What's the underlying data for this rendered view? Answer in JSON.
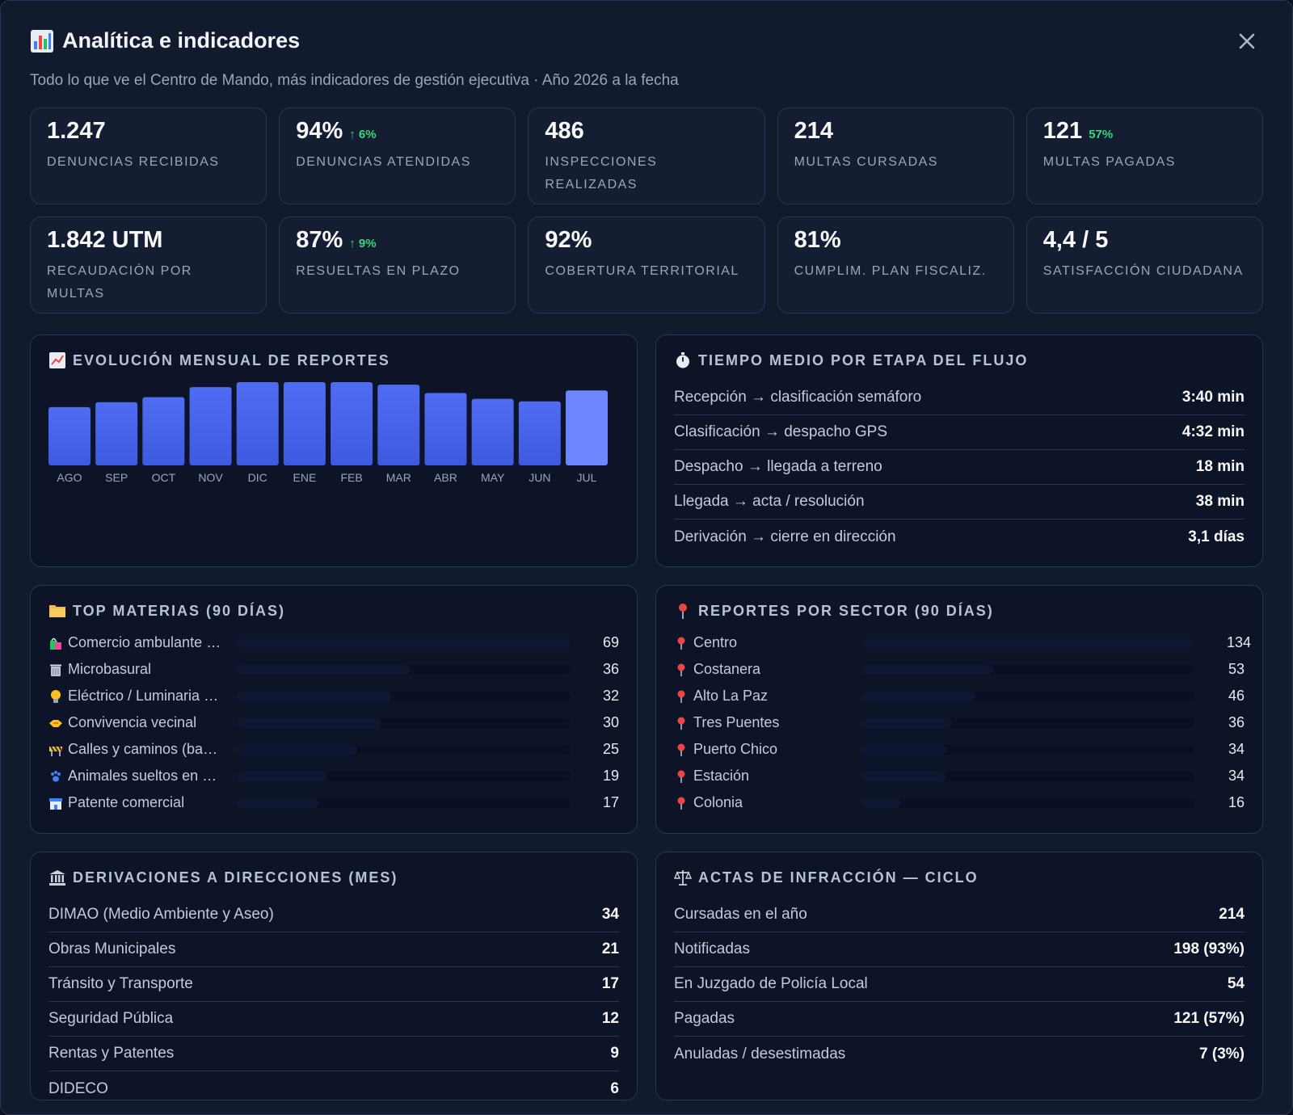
{
  "header": {
    "title": "Analítica e indicadores",
    "subtitle": "Todo lo que ve el Centro de Mando, más indicadores de gestión ejecutiva · Año 2026 a la fecha",
    "title_icon": "bar-chart-icon",
    "close_icon": "close-icon"
  },
  "kpis": [
    {
      "value": "1.247",
      "delta": "",
      "label": "Denuncias recibidas"
    },
    {
      "value": "94%",
      "delta": "↑ 6%",
      "label": "Denuncias atendidas"
    },
    {
      "value": "486",
      "delta": "",
      "label": "Inspecciones realizadas"
    },
    {
      "value": "214",
      "delta": "",
      "label": "Multas cursadas"
    },
    {
      "value": "121",
      "delta": "57%",
      "label": "Multas pagadas"
    },
    {
      "value": "1.842 UTM",
      "delta": "",
      "label": "Recaudación por multas"
    },
    {
      "value": "87%",
      "delta": "↑ 9%",
      "label": "Resueltas en plazo"
    },
    {
      "value": "92%",
      "delta": "",
      "label": "Cobertura territorial"
    },
    {
      "value": "81%",
      "delta": "",
      "label": "Cumplim. plan fiscaliz."
    },
    {
      "value": "4,4 / 5",
      "delta": "",
      "label": "Satisfacción ciudadana"
    }
  ],
  "monthly": {
    "title": "Evolución mensual de reportes",
    "icon": "line-chart-icon"
  },
  "chart_data": {
    "type": "bar",
    "categories": [
      "AGO",
      "SEP",
      "OCT",
      "NOV",
      "DIC",
      "ENE",
      "FEB",
      "MAR",
      "ABR",
      "MAY",
      "JUN",
      "JUL"
    ],
    "values": [
      70,
      76,
      82,
      94,
      100,
      100,
      100,
      97,
      87,
      80,
      77,
      90
    ],
    "title": "",
    "xlabel": "",
    "ylabel": "",
    "ylim": [
      0,
      100
    ],
    "grid": false,
    "highlight_index": 11,
    "colors": {
      "bar": "#3d5ae0",
      "bar_top": "#4f6cf2",
      "highlight": "#6b86ff",
      "tick": "#9aa5bc"
    }
  },
  "flow": {
    "title": "Tiempo medio por etapa del flujo",
    "icon": "stopwatch-icon",
    "rows": [
      {
        "label": "Recepción → clasificación semáforo",
        "value": "3:40 min"
      },
      {
        "label": "Clasificación → despacho GPS",
        "value": "4:32 min"
      },
      {
        "label": "Despacho → llegada a terreno",
        "value": "18 min"
      },
      {
        "label": "Llegada → acta / resolución",
        "value": "38 min"
      },
      {
        "label": "Derivación → cierre en dirección",
        "value": "3,1 días"
      }
    ]
  },
  "topics": {
    "title": "Top materias (90 días)",
    "icon": "folder-icon",
    "max": 69,
    "rows": [
      {
        "icon": "shopping-bags-icon",
        "label": "Comercio ambulante …",
        "value": 69
      },
      {
        "icon": "trash-can-icon",
        "label": "Microbasural",
        "value": 36
      },
      {
        "icon": "light-bulb-icon",
        "label": "Eléctrico / Luminaria …",
        "value": 32
      },
      {
        "icon": "handshake-icon",
        "label": "Convivencia vecinal",
        "value": 30
      },
      {
        "icon": "construction-barrier-icon",
        "label": "Calles y caminos (ba…",
        "value": 25
      },
      {
        "icon": "paw-prints-icon",
        "label": "Animales sueltos en …",
        "value": 19
      },
      {
        "icon": "store-icon",
        "label": "Patente comercial",
        "value": 17
      }
    ]
  },
  "sectors": {
    "title": "Reportes por sector (90 días)",
    "icon": "pin-icon",
    "max": 134,
    "rows": [
      {
        "icon": "pin-icon",
        "label": "Centro",
        "value": 134
      },
      {
        "icon": "pin-icon",
        "label": "Costanera",
        "value": 53
      },
      {
        "icon": "pin-icon",
        "label": "Alto La Paz",
        "value": 46
      },
      {
        "icon": "pin-icon",
        "label": "Tres Puentes",
        "value": 36
      },
      {
        "icon": "pin-icon",
        "label": "Puerto Chico",
        "value": 34
      },
      {
        "icon": "pin-icon",
        "label": "Estación",
        "value": 34
      },
      {
        "icon": "pin-icon",
        "label": "Colonia",
        "value": 16
      }
    ]
  },
  "derivations": {
    "title": "Derivaciones a direcciones (mes)",
    "icon": "bank-building-icon",
    "rows": [
      {
        "label": "DIMAO (Medio Ambiente y Aseo)",
        "value": "34"
      },
      {
        "label": "Obras Municipales",
        "value": "21"
      },
      {
        "label": "Tránsito y Transporte",
        "value": "17"
      },
      {
        "label": "Seguridad Pública",
        "value": "12"
      },
      {
        "label": "Rentas y Patentes",
        "value": "9"
      },
      {
        "label": "DIDECO",
        "value": "6"
      }
    ]
  },
  "infractions": {
    "title": "Actas de infracción — ciclo",
    "icon": "scales-icon",
    "rows": [
      {
        "label": "Cursadas en el año",
        "value": "214"
      },
      {
        "label": "Notificadas",
        "value": "198 (93%)"
      },
      {
        "label": "En Juzgado de Policía Local",
        "value": "54"
      },
      {
        "label": "Pagadas",
        "value": "121 (57%)"
      },
      {
        "label": "Anuladas / desestimadas",
        "value": "7 (3%)"
      }
    ]
  }
}
